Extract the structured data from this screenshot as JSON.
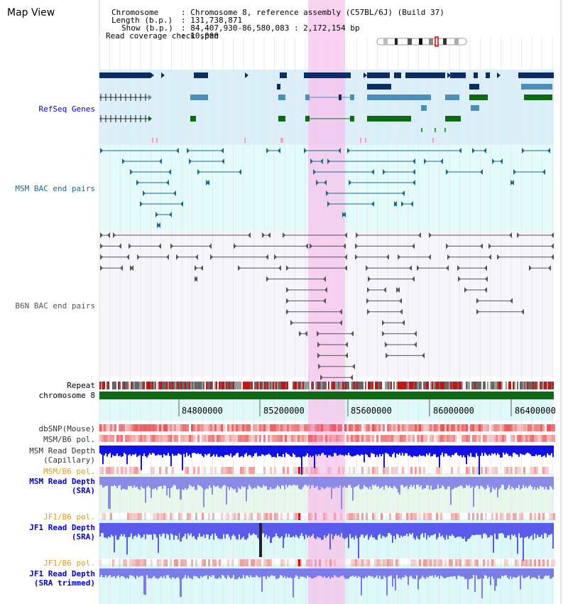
{
  "view": {
    "title": "Map View",
    "chromosome_label": "Chromosome",
    "chromosome_value": ": Chromosome 8, reference assembly (C57BL/6J) (Build 37)",
    "length_label": "Length (b.p.)",
    "length_value": ": 131,738,871",
    "show_label": "Show (b.p.)",
    "show_value": ": 84,407,930-86,580,083 : 2,172,154 bp",
    "coverage_label": "Read coverage check span",
    "coverage_value": ": 10,000"
  },
  "tracks": {
    "refseq": "RefSeq Genes",
    "msm_bac": "MSM BAC end pairs",
    "b6n_bac": "B6N BAC end pairs",
    "repeat": "Repeat",
    "chromosome": "chromosome 8",
    "dbsnp": "dbSNP(Mouse)",
    "msm_b6_pol_1": "MSM/B6 pol.",
    "msm_depth_cap_1": "MSM Read Depth",
    "msm_depth_cap_2": "(Capillary)",
    "msm_b6_pol_2": "MSM/B6 pol.",
    "msm_depth_sra_1": "MSM Read Depth",
    "msm_depth_sra_2": "(SRA)",
    "jf1_b6_pol_1": "JF1/B6 pol.",
    "jf1_depth_sra_1": "JF1 Read Depth",
    "jf1_depth_sra_2": "(SRA)",
    "jf1_b6_pol_2": "JF1/B6 pol.",
    "jf1_depth_trim_1": "JF1 Read Depth",
    "jf1_depth_trim_2": "(SRA trimmed)"
  },
  "axis": {
    "ticks": [
      "84800000",
      "85200000",
      "85600000",
      "86000000",
      "86400000"
    ]
  },
  "colors": {
    "refseq_dark": "#0d2c63",
    "refseq_mid": "#4a8fb8",
    "refseq_green": "#0c6b12",
    "msm_bac": "#1a6a8c",
    "b6n_bac": "#555555",
    "highlight": "#f7c2ec",
    "label_blue": "#0000cc",
    "label_orange": "#e0a000"
  }
}
